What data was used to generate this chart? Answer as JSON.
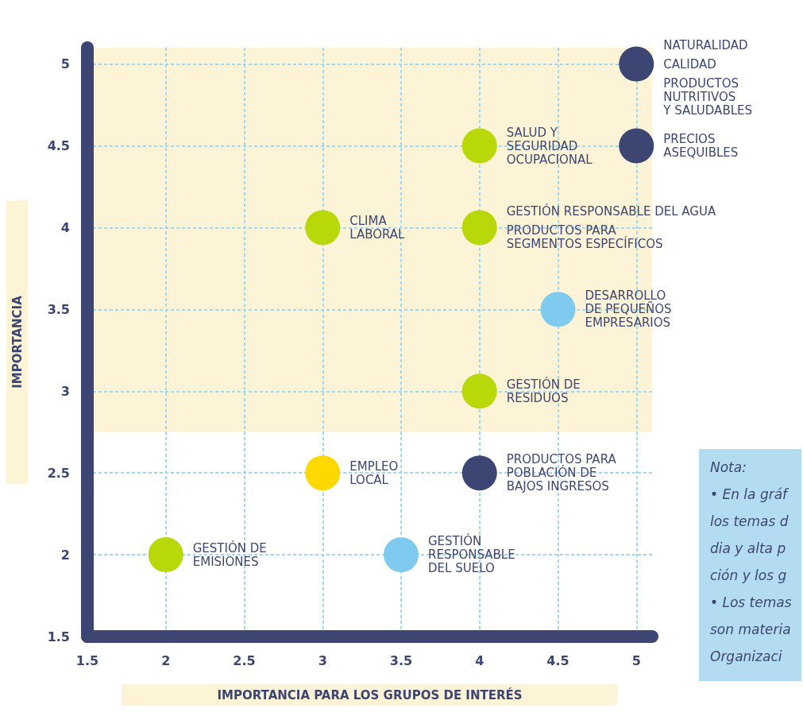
{
  "chart_data": {
    "type": "scatter",
    "xlabel": "IMPORTANCIA PARA LOS GRUPOS DE INTERÉS",
    "ylabel": "IMPORTANCIA",
    "x": [
      5,
      5,
      4,
      4,
      3,
      4.5,
      4,
      3,
      4,
      2,
      3.5
    ],
    "values": [
      5,
      4.5,
      4.5,
      4,
      4,
      3.5,
      3,
      2.5,
      2.5,
      2,
      2
    ],
    "colors": [
      "#3d4673",
      "#3d4673",
      "#b9d80a",
      "#b9d80a",
      "#b9d80a",
      "#7ecbef",
      "#b9d80a",
      "#ffd800",
      "#3d4673",
      "#b9d80a",
      "#7ecbef"
    ],
    "marker": "circle",
    "xlim": [
      1.5,
      5.1
    ],
    "ylim": [
      1.5,
      5.1
    ],
    "xticks": [
      1.5,
      2,
      2.5,
      3,
      3.5,
      4,
      4.5,
      5
    ],
    "yticks": [
      1.5,
      2,
      2.5,
      3,
      3.5,
      4,
      4.5,
      5
    ],
    "grid": true,
    "bands": [
      {
        "axis": "y",
        "from": 2.75,
        "to": 5.1,
        "color": "#fdf3d6"
      }
    ],
    "annotations": [
      {
        "text": "NATURALIDAD",
        "x": 5,
        "y": 5
      },
      {
        "text": "CALIDAD",
        "x": 5,
        "y": 5
      },
      {
        "text": "PRODUCTOS\nNUTRITIVOS\nY SALUDABLES",
        "x": 5,
        "y": 5
      },
      {
        "text": "PRECIOS\nASEQUIBLES",
        "x": 5,
        "y": 4.5
      },
      {
        "text": "SALUD Y\nSEGURIDAD\nOCUPACIONAL",
        "x": 4,
        "y": 4.5
      },
      {
        "text": "GESTIÓN RESPONSABLE DEL AGUA",
        "x": 4,
        "y": 4
      },
      {
        "text": "PRODUCTOS PARA\nSEGMENTOS ESPECÍFICOS",
        "x": 4,
        "y": 4
      },
      {
        "text": "CLIMA\nLABORAL",
        "x": 3,
        "y": 4
      },
      {
        "text": "DESARROLLO\nDE PEQUEÑOS\nEMPRESARIOS",
        "x": 4.5,
        "y": 3.5
      },
      {
        "text": "GESTIÓN DE\nRESIDUOS",
        "x": 4,
        "y": 3
      },
      {
        "text": "EMPLEO\nLOCAL",
        "x": 3,
        "y": 2.5
      },
      {
        "text": "PRODUCTOS PARA\nPOBLACIÓN DE\nBAJOS INGRESOS",
        "x": 4,
        "y": 2.5
      },
      {
        "text": "GESTIÓN DE\nEMISIONES",
        "x": 2,
        "y": 2
      },
      {
        "text": "GESTIÓN\nRESPONSABLE\nDEL SUELO",
        "x": 3.5,
        "y": 2
      },
      "Nota:",
      "• En la gráf",
      "los temas d",
      "dia y alta p",
      "ción y los g",
      "• Los temas",
      "son materia",
      "Organizaci"
    ]
  }
}
